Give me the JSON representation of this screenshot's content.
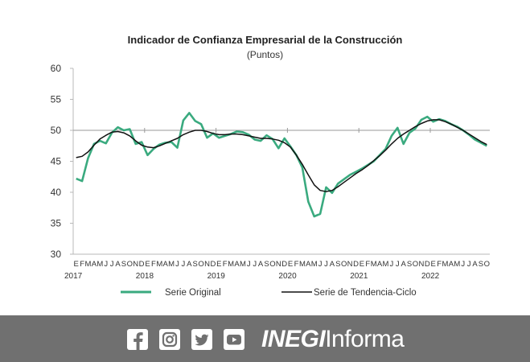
{
  "chart_data": {
    "type": "line",
    "title": "Indicador de Confianza Empresarial de la Construcción",
    "subtitle": "(Puntos)",
    "ylim": [
      30,
      60
    ],
    "yticks": [
      30,
      35,
      40,
      45,
      50,
      55,
      60
    ],
    "grid": false,
    "legend_position": "bottom",
    "month_labels": [
      "E",
      "F",
      "M",
      "A",
      "M",
      "J",
      "J",
      "A",
      "S",
      "O",
      "N",
      "D"
    ],
    "year_labels": [
      "2017",
      "2018",
      "2019",
      "2020",
      "2021",
      "2022"
    ],
    "x": [
      "2017-01",
      "2017-02",
      "2017-03",
      "2017-04",
      "2017-05",
      "2017-06",
      "2017-07",
      "2017-08",
      "2017-09",
      "2017-10",
      "2017-11",
      "2017-12",
      "2018-01",
      "2018-02",
      "2018-03",
      "2018-04",
      "2018-05",
      "2018-06",
      "2018-07",
      "2018-08",
      "2018-09",
      "2018-10",
      "2018-11",
      "2018-12",
      "2019-01",
      "2019-02",
      "2019-03",
      "2019-04",
      "2019-05",
      "2019-06",
      "2019-07",
      "2019-08",
      "2019-09",
      "2019-10",
      "2019-11",
      "2019-12",
      "2020-01",
      "2020-02",
      "2020-03",
      "2020-04",
      "2020-05",
      "2020-06",
      "2020-07",
      "2020-08",
      "2020-09",
      "2020-10",
      "2020-11",
      "2020-12",
      "2021-01",
      "2021-02",
      "2021-03",
      "2021-04",
      "2021-05",
      "2021-06",
      "2021-07",
      "2021-08",
      "2021-09",
      "2021-10",
      "2021-11",
      "2021-12",
      "2022-01",
      "2022-02",
      "2022-03",
      "2022-04",
      "2022-05",
      "2022-06",
      "2022-07",
      "2022-08",
      "2022-09",
      "2022-10"
    ],
    "series": [
      {
        "name": "Serie Original",
        "color": "#3aaa7f",
        "values": [
          42.2,
          41.8,
          45.5,
          47.8,
          48.3,
          47.9,
          49.6,
          50.5,
          50.0,
          50.2,
          47.8,
          48.1,
          46.0,
          47.0,
          47.7,
          48.0,
          48.1,
          47.2,
          51.6,
          52.8,
          51.5,
          51.0,
          48.8,
          49.5,
          48.8,
          49.1,
          49.4,
          49.8,
          49.7,
          49.3,
          48.5,
          48.3,
          49.2,
          48.6,
          47.1,
          48.7,
          47.4,
          46.0,
          44.0,
          38.5,
          36.1,
          36.5,
          40.8,
          39.9,
          41.4,
          42.1,
          42.8,
          43.3,
          43.8,
          44.4,
          45.0,
          46.0,
          47.0,
          49.1,
          50.4,
          47.8,
          49.6,
          50.3,
          51.7,
          52.2,
          51.4,
          51.8,
          51.5,
          51.0,
          50.6,
          50.0,
          49.3,
          48.5,
          48.0,
          47.5
        ]
      },
      {
        "name": "Serie de Tendencia-Ciclo",
        "color": "#111111",
        "values": [
          45.6,
          45.8,
          46.5,
          47.6,
          48.6,
          49.2,
          49.7,
          49.8,
          49.6,
          49.1,
          48.3,
          47.6,
          47.3,
          47.2,
          47.5,
          47.9,
          48.3,
          48.7,
          49.3,
          49.7,
          50.0,
          50.0,
          49.8,
          49.5,
          49.3,
          49.3,
          49.4,
          49.4,
          49.3,
          49.1,
          48.9,
          48.7,
          48.7,
          48.6,
          48.4,
          48.0,
          47.3,
          46.0,
          44.5,
          42.8,
          41.2,
          40.3,
          40.1,
          40.3,
          40.9,
          41.6,
          42.3,
          43.0,
          43.6,
          44.3,
          45.1,
          45.9,
          46.8,
          47.8,
          48.7,
          49.4,
          50.0,
          50.6,
          51.1,
          51.5,
          51.7,
          51.7,
          51.4,
          51.0,
          50.5,
          50.0,
          49.4,
          48.8,
          48.2,
          47.7
        ]
      }
    ]
  },
  "footer": {
    "brand_strong": "INEGI",
    "brand_rest": "Informa",
    "icons": [
      "facebook-icon",
      "instagram-icon",
      "twitter-icon",
      "youtube-icon"
    ],
    "background": "#707070"
  }
}
